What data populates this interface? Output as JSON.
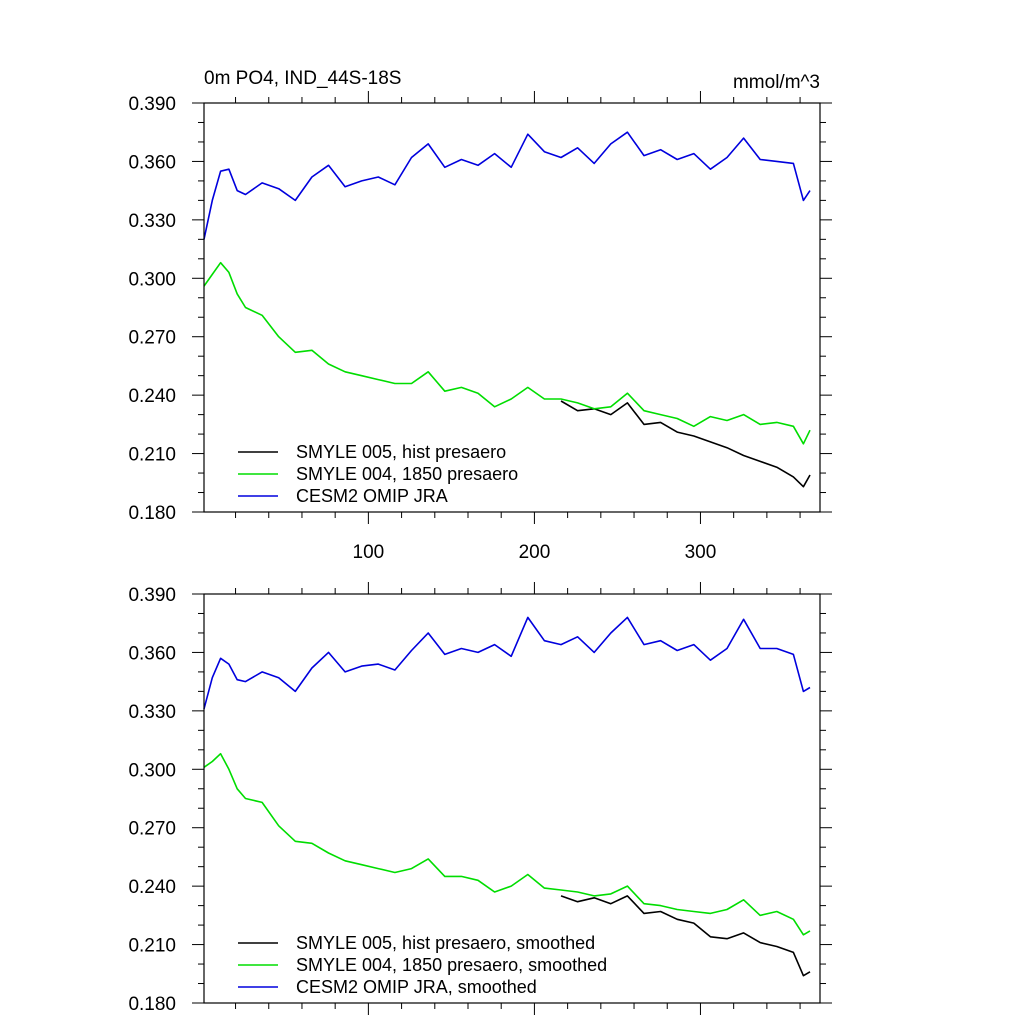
{
  "chart_data": [
    {
      "type": "line",
      "title": "0m PO4, IND_44S-18S",
      "units": "mmol/m^3",
      "xlabel": "",
      "ylabel": "",
      "xlim": [
        1,
        372
      ],
      "ylim": [
        0.18,
        0.39
      ],
      "x_ticks": [
        100,
        200,
        300
      ],
      "y_ticks": [
        0.18,
        0.21,
        0.24,
        0.27,
        0.3,
        0.33,
        0.36,
        0.39
      ],
      "y_tick_labels": [
        "0.180",
        "0.210",
        "0.240",
        "0.270",
        "0.300",
        "0.330",
        "0.360",
        "0.390"
      ],
      "legend_position": "bottom-left",
      "series": [
        {
          "name": "SMYLE 005, hist presaero",
          "color": "#000000",
          "x": [
            216,
            226,
            236,
            246,
            256,
            266,
            276,
            286,
            296,
            306,
            316,
            326,
            336,
            346,
            356,
            362,
            366
          ],
          "values": [
            0.237,
            0.232,
            0.233,
            0.23,
            0.236,
            0.225,
            0.226,
            0.221,
            0.219,
            0.216,
            0.213,
            0.209,
            0.206,
            0.203,
            0.198,
            0.193,
            0.199
          ]
        },
        {
          "name": "SMYLE 004, 1850 presaero",
          "color": "#00dd00",
          "x": [
            1,
            6,
            11,
            16,
            21,
            26,
            36,
            46,
            56,
            66,
            76,
            86,
            96,
            106,
            116,
            126,
            136,
            146,
            156,
            166,
            176,
            186,
            196,
            206,
            216,
            226,
            236,
            246,
            256,
            266,
            276,
            286,
            296,
            306,
            316,
            326,
            336,
            346,
            356,
            362,
            366
          ],
          "values": [
            0.296,
            0.302,
            0.308,
            0.303,
            0.292,
            0.285,
            0.281,
            0.27,
            0.262,
            0.263,
            0.256,
            0.252,
            0.25,
            0.248,
            0.246,
            0.246,
            0.252,
            0.242,
            0.244,
            0.241,
            0.234,
            0.238,
            0.244,
            0.238,
            0.238,
            0.236,
            0.233,
            0.234,
            0.241,
            0.232,
            0.23,
            0.228,
            0.224,
            0.229,
            0.227,
            0.23,
            0.225,
            0.226,
            0.224,
            0.215,
            0.222
          ]
        },
        {
          "name": "CESM2 OMIP JRA",
          "color": "#0000dd",
          "x": [
            1,
            6,
            11,
            16,
            21,
            26,
            36,
            46,
            56,
            66,
            76,
            86,
            96,
            106,
            116,
            126,
            136,
            146,
            156,
            166,
            176,
            186,
            196,
            206,
            216,
            226,
            236,
            246,
            256,
            266,
            276,
            286,
            296,
            306,
            316,
            326,
            336,
            346,
            356,
            362,
            366
          ],
          "values": [
            0.32,
            0.34,
            0.355,
            0.356,
            0.345,
            0.343,
            0.349,
            0.346,
            0.34,
            0.352,
            0.358,
            0.347,
            0.35,
            0.352,
            0.348,
            0.362,
            0.369,
            0.357,
            0.361,
            0.358,
            0.364,
            0.357,
            0.374,
            0.365,
            0.362,
            0.367,
            0.359,
            0.369,
            0.375,
            0.363,
            0.366,
            0.361,
            0.364,
            0.356,
            0.362,
            0.372,
            0.361,
            0.36,
            0.359,
            0.34,
            0.345
          ]
        }
      ]
    },
    {
      "type": "line",
      "title": "",
      "xlabel": "",
      "ylabel": "",
      "xlim": [
        1,
        372
      ],
      "ylim": [
        0.18,
        0.39
      ],
      "x_ticks": [
        100,
        200,
        300
      ],
      "y_ticks": [
        0.18,
        0.21,
        0.24,
        0.27,
        0.3,
        0.33,
        0.36,
        0.39
      ],
      "y_tick_labels": [
        "0.180",
        "0.210",
        "0.240",
        "0.270",
        "0.300",
        "0.330",
        "0.360",
        "0.390"
      ],
      "legend_position": "bottom-left",
      "series": [
        {
          "name": "SMYLE 005, hist presaero, smoothed",
          "color": "#000000",
          "x": [
            216,
            226,
            236,
            246,
            256,
            266,
            276,
            286,
            296,
            306,
            316,
            326,
            336,
            346,
            356,
            362,
            366
          ],
          "values": [
            0.235,
            0.232,
            0.234,
            0.231,
            0.235,
            0.226,
            0.227,
            0.223,
            0.221,
            0.214,
            0.213,
            0.216,
            0.211,
            0.209,
            0.206,
            0.194,
            0.196
          ]
        },
        {
          "name": "SMYLE 004, 1850 presaero, smoothed",
          "color": "#00dd00",
          "x": [
            1,
            6,
            11,
            16,
            21,
            26,
            36,
            46,
            56,
            66,
            76,
            86,
            96,
            106,
            116,
            126,
            136,
            146,
            156,
            166,
            176,
            186,
            196,
            206,
            216,
            226,
            236,
            246,
            256,
            266,
            276,
            286,
            296,
            306,
            316,
            326,
            336,
            346,
            356,
            362,
            366
          ],
          "values": [
            0.301,
            0.304,
            0.308,
            0.3,
            0.29,
            0.285,
            0.283,
            0.271,
            0.263,
            0.262,
            0.257,
            0.253,
            0.251,
            0.249,
            0.247,
            0.249,
            0.254,
            0.245,
            0.245,
            0.243,
            0.237,
            0.24,
            0.246,
            0.239,
            0.238,
            0.237,
            0.235,
            0.236,
            0.24,
            0.231,
            0.23,
            0.228,
            0.227,
            0.226,
            0.228,
            0.233,
            0.225,
            0.227,
            0.223,
            0.215,
            0.217
          ]
        },
        {
          "name": "CESM2 OMIP JRA, smoothed",
          "color": "#0000dd",
          "x": [
            1,
            6,
            11,
            16,
            21,
            26,
            36,
            46,
            56,
            66,
            76,
            86,
            96,
            106,
            116,
            126,
            136,
            146,
            156,
            166,
            176,
            186,
            196,
            206,
            216,
            226,
            236,
            246,
            256,
            266,
            276,
            286,
            296,
            306,
            316,
            326,
            336,
            346,
            356,
            362,
            366
          ],
          "values": [
            0.331,
            0.347,
            0.357,
            0.354,
            0.346,
            0.345,
            0.35,
            0.347,
            0.34,
            0.352,
            0.36,
            0.35,
            0.353,
            0.354,
            0.351,
            0.361,
            0.37,
            0.359,
            0.362,
            0.36,
            0.364,
            0.358,
            0.378,
            0.366,
            0.364,
            0.368,
            0.36,
            0.37,
            0.378,
            0.364,
            0.366,
            0.361,
            0.364,
            0.356,
            0.362,
            0.377,
            0.362,
            0.362,
            0.359,
            0.34,
            0.342
          ]
        }
      ]
    }
  ]
}
